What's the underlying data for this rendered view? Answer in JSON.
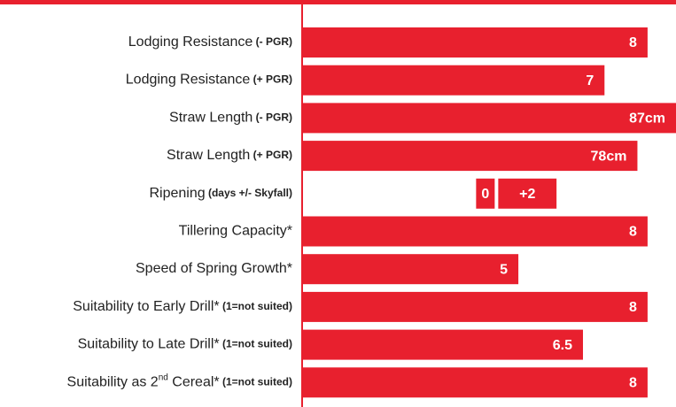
{
  "chart_data": {
    "type": "bar",
    "orientation": "horizontal",
    "color": "#e8202e",
    "rows": [
      {
        "label": "Lodging Resistance",
        "note": "(- PGR)",
        "value": 8,
        "xlim": [
          0,
          8.66
        ]
      },
      {
        "label": "Lodging Resistance",
        "note": "(+ PGR)",
        "value": 7,
        "xlim": [
          0,
          8.66
        ]
      },
      {
        "label": "Straw Length",
        "note": "(- PGR)",
        "value": 87,
        "value_label": "87cm",
        "xlim": [
          0,
          87
        ]
      },
      {
        "label": "Straw Length",
        "note": "(+ PGR)",
        "value": 78,
        "value_label": "78cm",
        "xlim": [
          0,
          87
        ]
      },
      {
        "label": "Ripening",
        "note": "(days +/- Skyfall)",
        "value": 2,
        "value_label": "+2",
        "reference": 0,
        "xlim": [
          -6.7,
          6.1
        ]
      },
      {
        "label": "Tillering Capacity*",
        "value": 8,
        "xlim": [
          0,
          8.66
        ]
      },
      {
        "label": "Speed of Spring Growth*",
        "value": 5,
        "xlim": [
          0,
          8.66
        ]
      },
      {
        "label": "Suitability to Early Drill*",
        "note": "(1=not suited)",
        "value": 8,
        "xlim": [
          0,
          8.66
        ]
      },
      {
        "label": "Suitability to Late Drill*",
        "note": "(1=not suited)",
        "value": 6.5,
        "xlim": [
          0,
          8.66
        ]
      },
      {
        "label": "Suitability as 2",
        "label_sup": "nd",
        "label_end": " Cereal*",
        "note": "(1=not suited)",
        "value": 8,
        "xlim": [
          0,
          8.66
        ]
      }
    ]
  }
}
